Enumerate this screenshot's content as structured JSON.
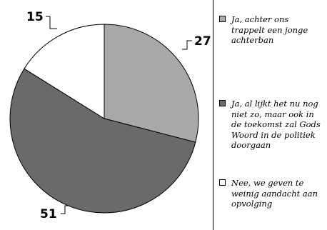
{
  "chart_data": {
    "type": "pie",
    "categories": [
      "Ja, achter ons trappelt een jonge achterban",
      "Ja, al lijkt het nu nog niet zo, maar ook in de toekomst zal Gods Woord in de politiek doorgaan",
      "Nee, we geven te weinig aandacht aan opvolging"
    ],
    "values": [
      27,
      51,
      15
    ],
    "colors": [
      "#a8a8a8",
      "#6a6a6a",
      "#ffffff"
    ],
    "legend_placement": "right"
  }
}
